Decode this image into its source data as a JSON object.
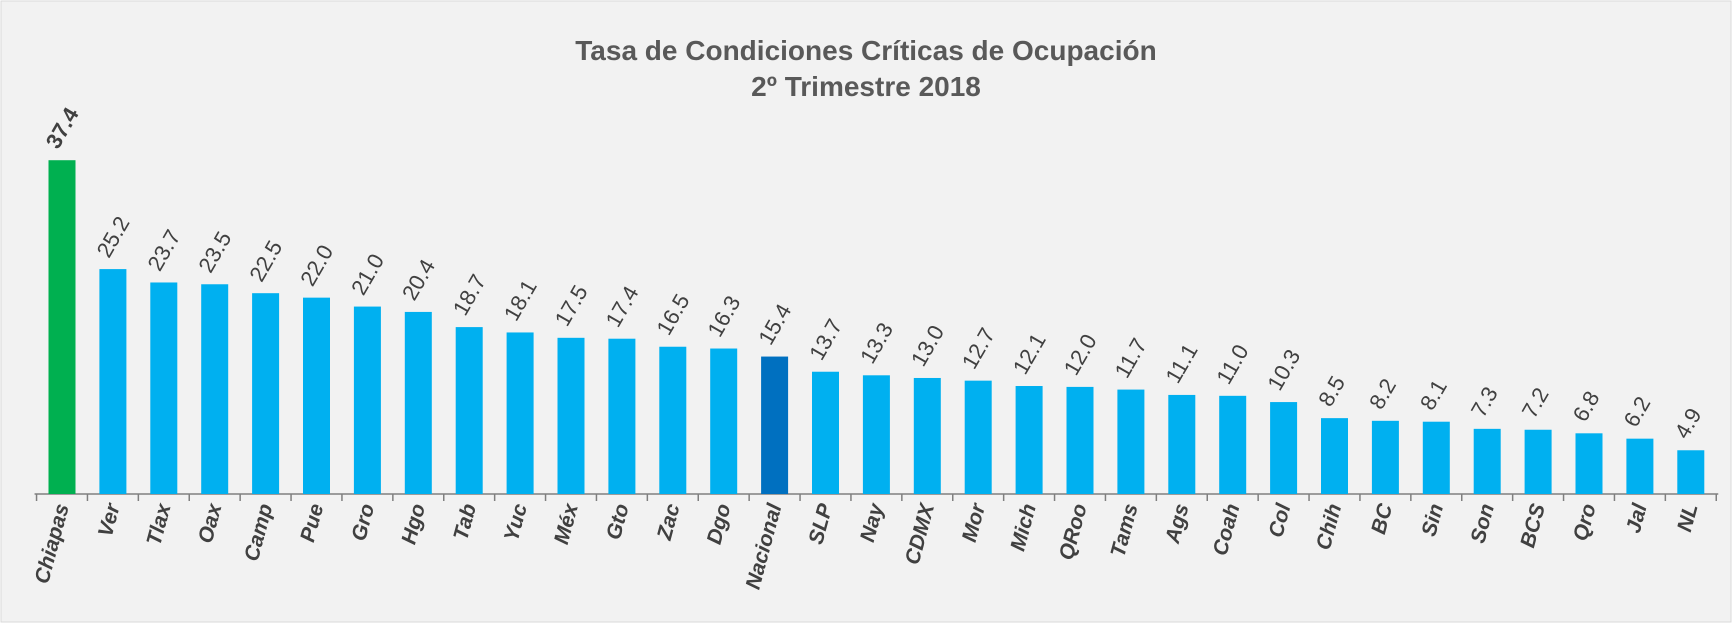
{
  "chart_data": {
    "type": "bar",
    "title": "Tasa de Condiciones Críticas de Ocupación",
    "subtitle": "2º Trimestre 2018",
    "categories": [
      "Chiapas",
      "Ver",
      "Tlax",
      "Oax",
      "Camp",
      "Pue",
      "Gro",
      "Hgo",
      "Tab",
      "Yuc",
      "Méx",
      "Gto",
      "Zac",
      "Dgo",
      "Nacional",
      "SLP",
      "Nay",
      "CDMX",
      "Mor",
      "Mich",
      "QRoo",
      "Tams",
      "Ags",
      "Coah",
      "Col",
      "Chih",
      "BC",
      "Sin",
      "Son",
      "BCS",
      "Qro",
      "Jal",
      "NL"
    ],
    "values": [
      37.4,
      25.2,
      23.7,
      23.5,
      22.5,
      22.0,
      21.0,
      20.4,
      18.7,
      18.1,
      17.5,
      17.4,
      16.5,
      16.3,
      15.4,
      13.7,
      13.3,
      13.0,
      12.7,
      12.1,
      12.0,
      11.7,
      11.1,
      11.0,
      10.3,
      8.5,
      8.2,
      8.1,
      7.3,
      7.2,
      6.8,
      6.2,
      4.9
    ],
    "value_labels": [
      "37.4",
      "25.2",
      "23.7",
      "23.5",
      "22.5",
      "22.0",
      "21.0",
      "20.4",
      "18.7",
      "18.1",
      "17.5",
      "17.4",
      "16.5",
      "16.3",
      "15.4",
      "13.7",
      "13.3",
      "13.0",
      "12.7",
      "12.1",
      "12.0",
      "11.7",
      "11.1",
      "11.0",
      "10.3",
      "8.5",
      "8.2",
      "8.1",
      "7.3",
      "7.2",
      "6.8",
      "6.2",
      "4.9"
    ],
    "colors": [
      "#00b050",
      "#00b0f0",
      "#00b0f0",
      "#00b0f0",
      "#00b0f0",
      "#00b0f0",
      "#00b0f0",
      "#00b0f0",
      "#00b0f0",
      "#00b0f0",
      "#00b0f0",
      "#00b0f0",
      "#00b0f0",
      "#00b0f0",
      "#0070c0",
      "#00b0f0",
      "#00b0f0",
      "#00b0f0",
      "#00b0f0",
      "#00b0f0",
      "#00b0f0",
      "#00b0f0",
      "#00b0f0",
      "#00b0f0",
      "#00b0f0",
      "#00b0f0",
      "#00b0f0",
      "#00b0f0",
      "#00b0f0",
      "#00b0f0",
      "#00b0f0",
      "#00b0f0",
      "#00b0f0"
    ],
    "ylim": [
      0,
      40
    ]
  }
}
